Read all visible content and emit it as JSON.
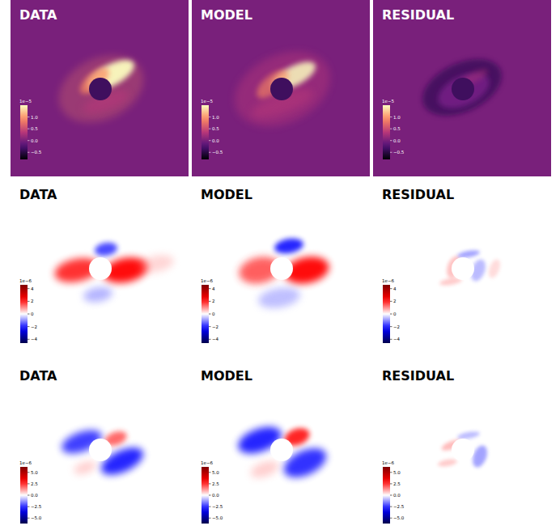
{
  "chart_data": [
    {
      "type": "heatmap",
      "title": "DATA",
      "colorbar": {
        "lim": [
          -0.8,
          1.5
        ],
        "label": "1e−5",
        "ticks": [
          {
            "value": 1,
            "label": "1.0"
          },
          {
            "value": 0.5,
            "label": "0.5"
          },
          {
            "value": 0,
            "label": "0.0"
          },
          {
            "value": -0.5,
            "label": "−0.5"
          }
        ]
      }
    },
    {
      "type": "heatmap",
      "title": "MODEL",
      "colorbar": {
        "lim": [
          -0.8,
          1.5
        ],
        "label": "1e−5",
        "ticks": [
          {
            "value": 1,
            "label": "1.0"
          },
          {
            "value": 0.5,
            "label": "0.5"
          },
          {
            "value": 0,
            "label": "0.0"
          },
          {
            "value": -0.5,
            "label": "−0.5"
          }
        ]
      }
    },
    {
      "type": "heatmap",
      "title": "RESIDUAL",
      "colorbar": {
        "lim": [
          -0.8,
          1.5
        ],
        "label": "1e−5",
        "ticks": [
          {
            "value": 1,
            "label": "1.0"
          },
          {
            "value": 0.5,
            "label": "0.5"
          },
          {
            "value": 0,
            "label": "0.0"
          },
          {
            "value": -0.5,
            "label": "−0.5"
          }
        ]
      }
    },
    {
      "type": "heatmap",
      "title": "DATA",
      "colorbar": {
        "lim": [
          -4.6,
          4.6
        ],
        "label": "1e−6",
        "ticks": [
          4,
          2,
          0,
          {
            "value": -2,
            "label": "−2"
          },
          {
            "value": -4,
            "label": "−4"
          }
        ]
      }
    },
    {
      "type": "heatmap",
      "title": "MODEL",
      "colorbar": {
        "lim": [
          -4.6,
          4.6
        ],
        "label": "1e−6",
        "ticks": [
          4,
          2,
          0,
          {
            "value": -2,
            "label": "−2"
          },
          {
            "value": -4,
            "label": "−4"
          }
        ]
      }
    },
    {
      "type": "heatmap",
      "title": "RESIDUAL",
      "colorbar": {
        "lim": [
          -4.6,
          4.6
        ],
        "label": "1e−6",
        "ticks": [
          4,
          2,
          0,
          {
            "value": -2,
            "label": "−2"
          },
          {
            "value": -4,
            "label": "−4"
          }
        ]
      }
    },
    {
      "type": "heatmap",
      "title": "DATA",
      "colorbar": {
        "lim": [
          -6.2,
          6.2
        ],
        "label": "1e−6",
        "ticks": [
          {
            "value": 5,
            "label": "5.0"
          },
          {
            "value": 2.5,
            "label": "2.5"
          },
          {
            "value": 0,
            "label": "0.0"
          },
          {
            "value": -2.5,
            "label": "−2.5"
          },
          {
            "value": -5,
            "label": "−5.0"
          }
        ]
      }
    },
    {
      "type": "heatmap",
      "title": "MODEL",
      "colorbar": {
        "lim": [
          -6.2,
          6.2
        ],
        "label": "1e−6",
        "ticks": [
          {
            "value": 5,
            "label": "5.0"
          },
          {
            "value": 2.5,
            "label": "2.5"
          },
          {
            "value": 0,
            "label": "0.0"
          },
          {
            "value": -2.5,
            "label": "−2.5"
          },
          {
            "value": -5,
            "label": "−5.0"
          }
        ]
      }
    },
    {
      "type": "heatmap",
      "title": "RESIDUAL",
      "colorbar": {
        "lim": [
          -6.2,
          6.2
        ],
        "label": "1e−6",
        "ticks": [
          {
            "value": 5,
            "label": "5.0"
          },
          {
            "value": 2.5,
            "label": "2.5"
          },
          {
            "value": 0,
            "label": "0.0"
          },
          {
            "value": -2.5,
            "label": "−2.5"
          },
          {
            "value": -5,
            "label": "−5.0"
          }
        ]
      }
    }
  ]
}
